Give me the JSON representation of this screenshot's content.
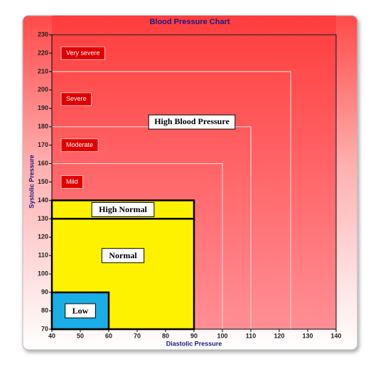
{
  "chart_data": {
    "type": "region",
    "title": "Blood Pressure Chart",
    "xlabel": "Diastolic Pressure",
    "ylabel": "Systolic Pressure",
    "xlim": [
      40,
      140
    ],
    "ylim": [
      70,
      230
    ],
    "xticks": [
      40,
      50,
      60,
      70,
      80,
      90,
      100,
      110,
      120,
      130,
      140
    ],
    "yticks": [
      70,
      80,
      90,
      100,
      110,
      120,
      130,
      140,
      150,
      160,
      170,
      180,
      190,
      200,
      210,
      220,
      230
    ],
    "regions": [
      {
        "name": "Low",
        "x": [
          40,
          60
        ],
        "y": [
          70,
          90
        ],
        "color": "#1aaee6"
      },
      {
        "name": "Normal",
        "x": [
          40,
          90
        ],
        "y": [
          70,
          130
        ],
        "color": "#fff200"
      },
      {
        "name": "High Normal",
        "x": [
          40,
          90
        ],
        "y": [
          130,
          140
        ],
        "color": "#fff200"
      }
    ],
    "zones": [
      {
        "name": "Mild",
        "x": 100,
        "y": 160
      },
      {
        "name": "Moderate",
        "x": 110,
        "y": 180
      },
      {
        "name": "Severe",
        "x": 124,
        "y": 210
      },
      {
        "name": "Very severe",
        "x": 140,
        "y": 230
      }
    ],
    "annotation": "High Blood Pressure"
  }
}
